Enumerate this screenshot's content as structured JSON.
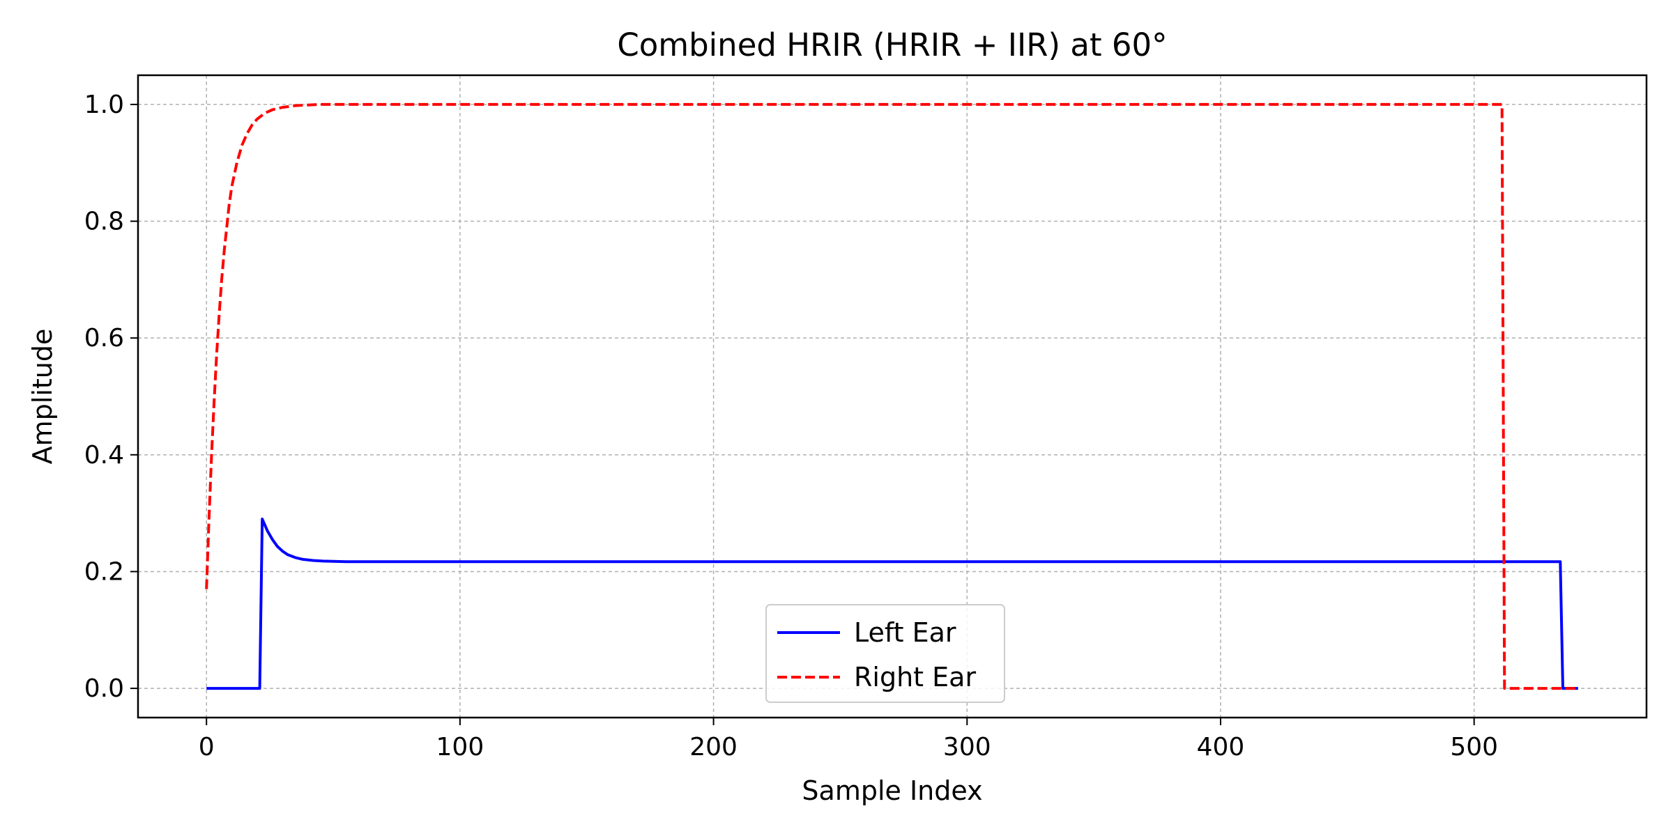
{
  "chart_data": {
    "type": "line",
    "title": "Combined HRIR (HRIR + IIR) at 60°",
    "xlabel": "Sample Index",
    "ylabel": "Amplitude",
    "xlim": [
      -27,
      568
    ],
    "ylim": [
      -0.05,
      1.05
    ],
    "xticks": [
      0,
      100,
      200,
      300,
      400,
      500
    ],
    "xtick_labels": [
      "0",
      "100",
      "200",
      "300",
      "400",
      "500"
    ],
    "yticks": [
      0.0,
      0.2,
      0.4,
      0.6,
      0.8,
      1.0
    ],
    "ytick_labels": [
      "0.0",
      "0.2",
      "0.4",
      "0.6",
      "0.8",
      "1.0"
    ],
    "grid": true,
    "legend_position": "lower center",
    "series": [
      {
        "name": "Left Ear",
        "color": "#0000ff",
        "style": "solid",
        "x": [
          0,
          21,
          22,
          24,
          26,
          28,
          30,
          32,
          35,
          38,
          42,
          46,
          50,
          55,
          60,
          534,
          535,
          541
        ],
        "y": [
          0.0,
          0.0,
          0.29,
          0.27,
          0.255,
          0.243,
          0.235,
          0.229,
          0.224,
          0.221,
          0.219,
          0.218,
          0.2175,
          0.217,
          0.217,
          0.217,
          0.0,
          0.0
        ]
      },
      {
        "name": "Right Ear",
        "color": "#ff0000",
        "style": "dashed",
        "x": [
          0,
          1,
          2,
          3,
          4,
          5,
          6,
          7,
          8,
          9,
          10,
          12,
          14,
          16,
          18,
          20,
          23,
          26,
          30,
          35,
          40,
          45,
          50,
          511,
          512,
          541
        ],
        "y": [
          0.17,
          0.29,
          0.4,
          0.49,
          0.57,
          0.64,
          0.7,
          0.75,
          0.79,
          0.83,
          0.86,
          0.9,
          0.93,
          0.95,
          0.965,
          0.975,
          0.985,
          0.991,
          0.995,
          0.998,
          0.999,
          1.0,
          1.0,
          1.0,
          0.0,
          0.0
        ]
      }
    ]
  }
}
